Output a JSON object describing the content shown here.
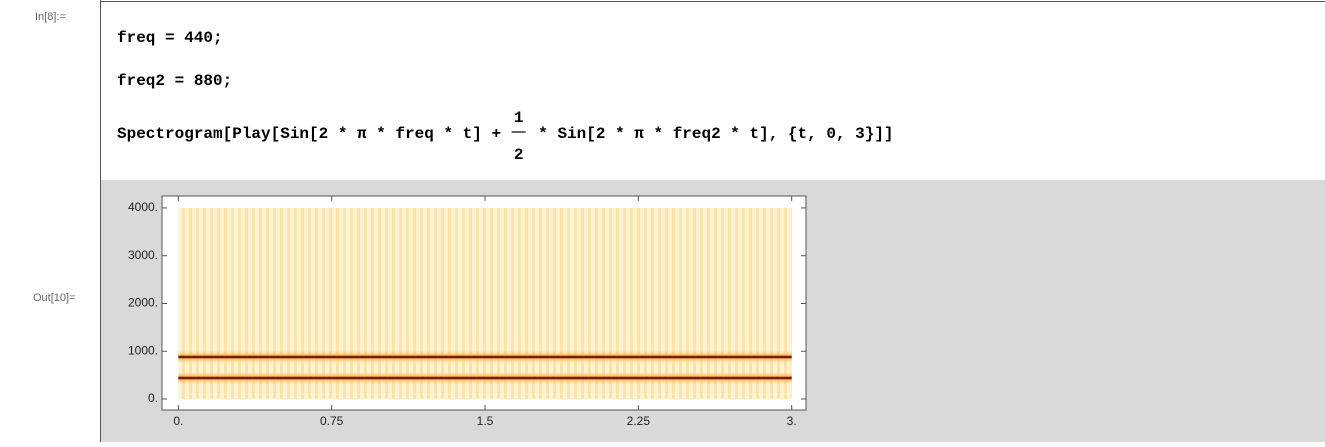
{
  "input_label": "In[8]:=",
  "code": {
    "line1": "freq = 440;",
    "line2": "freq2 = 880;",
    "line3_start": "Spectrogram[Play[Sin[2 * π * freq * t] + ",
    "numerator": "1",
    "denominator": "2",
    "line3_end": " * Sin[2 * π * freq2 * t], {t, 0, 3}]]"
  },
  "output_label": "Out[10]=",
  "chart_data": {
    "type": "spectrogram",
    "values": [
      440,
      880
    ],
    "color": "#7a1a0c",
    "xlim": [
      -0.08,
      3.07
    ],
    "ylim": [
      -230,
      4250
    ],
    "signal_range": {
      "x": [
        0,
        3
      ],
      "y": [
        0,
        4000
      ]
    },
    "xticks": [
      {
        "value": 0,
        "label": "0."
      },
      0.75,
      1.5,
      2.25,
      {
        "value": 3,
        "label": "3."
      }
    ],
    "yticks": [
      {
        "value": 0,
        "label": "0."
      },
      {
        "value": 1000,
        "label": "1000."
      },
      {
        "value": 2000,
        "label": "2000."
      },
      {
        "value": 3000,
        "label": "3000."
      },
      {
        "value": 4000,
        "label": "4000."
      }
    ]
  }
}
